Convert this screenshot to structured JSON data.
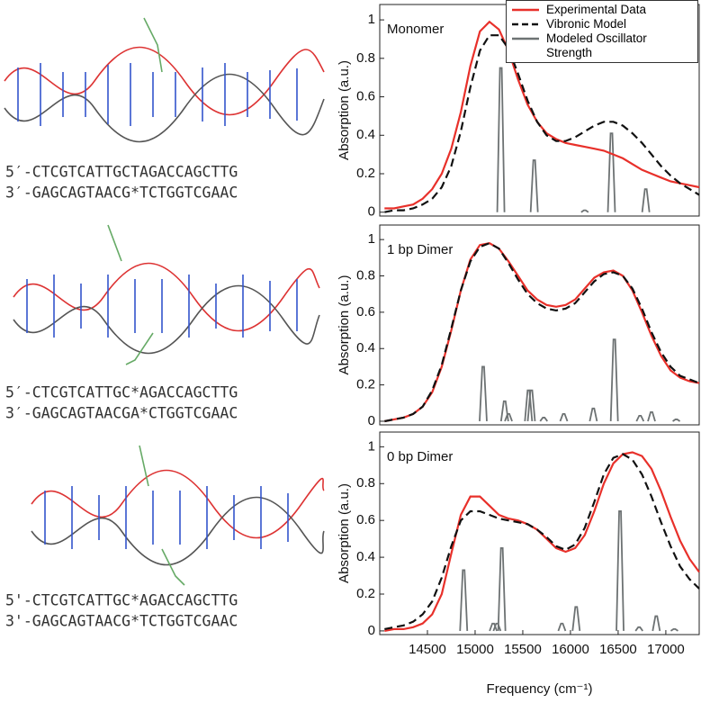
{
  "structures": [
    {
      "strand_5": "5′-CTCGTCATTGCTAGACCAGCTTG",
      "strand_3": "3′-GAGCAGTAACG*TCTGGTCGAAC"
    },
    {
      "strand_5": "5′-CTCGTCATTGC*AGACCAGCTTG",
      "strand_3": "3′-GAGCAGTAACGA*CTGGTCGAAC"
    },
    {
      "strand_5": "5'-CTCGTCATTGC*AGACCAGCTTG",
      "strand_3": "3'-GAGCAGTAACG*TCTGGTCGAAC"
    }
  ],
  "chart_data": [
    {
      "type": "line",
      "title": "Monomer",
      "ylabel": "Absorption (a.u.)",
      "legend": "upper right",
      "xlim": [
        14000,
        17350
      ],
      "ylim": [
        -0.02,
        1.08
      ],
      "yticks": [
        0,
        0.2,
        0.4,
        0.6,
        0.8,
        1
      ],
      "x": [
        14050,
        14150,
        14250,
        14350,
        14450,
        14550,
        14650,
        14750,
        14850,
        14950,
        15050,
        15150,
        15250,
        15350,
        15450,
        15550,
        15650,
        15750,
        15850,
        15950,
        16050,
        16150,
        16250,
        16350,
        16450,
        16550,
        16650,
        16750,
        16850,
        16950,
        17050,
        17150,
        17250,
        17350
      ],
      "series": [
        {
          "name": "Experimental Data",
          "color": "#e8302a",
          "values": [
            0.02,
            0.02,
            0.03,
            0.04,
            0.07,
            0.12,
            0.2,
            0.33,
            0.52,
            0.76,
            0.94,
            0.99,
            0.95,
            0.84,
            0.69,
            0.56,
            0.47,
            0.41,
            0.38,
            0.36,
            0.35,
            0.34,
            0.33,
            0.32,
            0.3,
            0.28,
            0.25,
            0.22,
            0.2,
            0.18,
            0.16,
            0.15,
            0.14,
            0.13
          ]
        },
        {
          "name": "Vibronic Model",
          "color": "#111111",
          "dash": true,
          "values": [
            0,
            0.01,
            0.01,
            0.02,
            0.04,
            0.07,
            0.13,
            0.24,
            0.42,
            0.65,
            0.84,
            0.92,
            0.92,
            0.85,
            0.72,
            0.58,
            0.47,
            0.4,
            0.37,
            0.37,
            0.39,
            0.42,
            0.45,
            0.47,
            0.47,
            0.45,
            0.41,
            0.36,
            0.3,
            0.24,
            0.19,
            0.15,
            0.12,
            0.09
          ]
        },
        {
          "name": "Modeled Oscillator Strength",
          "color": "#6d7273",
          "stick": true,
          "x": [
            15270,
            15620,
            16150,
            16430,
            16790
          ],
          "values": [
            0.75,
            0.27,
            0.01,
            0.41,
            0.12
          ]
        }
      ]
    },
    {
      "type": "line",
      "title": "1 bp Dimer",
      "ylabel": "Absorption (a.u.)",
      "xlim": [
        14000,
        17350
      ],
      "ylim": [
        -0.02,
        1.08
      ],
      "yticks": [
        0,
        0.2,
        0.4,
        0.6,
        0.8,
        1
      ],
      "x": [
        14050,
        14150,
        14250,
        14350,
        14450,
        14550,
        14650,
        14750,
        14850,
        14950,
        15050,
        15150,
        15250,
        15350,
        15450,
        15550,
        15650,
        15750,
        15850,
        15950,
        16050,
        16150,
        16250,
        16350,
        16450,
        16550,
        16650,
        16750,
        16850,
        16950,
        17050,
        17150,
        17250,
        17350
      ],
      "series": [
        {
          "color": "#e8302a",
          "values": [
            0,
            0.01,
            0.02,
            0.04,
            0.08,
            0.16,
            0.3,
            0.5,
            0.72,
            0.89,
            0.97,
            0.98,
            0.95,
            0.88,
            0.8,
            0.72,
            0.67,
            0.64,
            0.63,
            0.64,
            0.67,
            0.73,
            0.79,
            0.82,
            0.83,
            0.8,
            0.72,
            0.6,
            0.47,
            0.36,
            0.28,
            0.24,
            0.22,
            0.21
          ]
        },
        {
          "color": "#111111",
          "dash": true,
          "values": [
            0,
            0.01,
            0.02,
            0.04,
            0.08,
            0.17,
            0.31,
            0.51,
            0.72,
            0.88,
            0.96,
            0.98,
            0.95,
            0.87,
            0.78,
            0.7,
            0.65,
            0.62,
            0.61,
            0.62,
            0.65,
            0.71,
            0.77,
            0.81,
            0.82,
            0.8,
            0.73,
            0.62,
            0.49,
            0.38,
            0.3,
            0.25,
            0.23,
            0.21
          ]
        },
        {
          "color": "#6d7273",
          "stick": true,
          "x": [
            15085,
            15310,
            15350,
            15560,
            15590,
            15720,
            15930,
            16240,
            16460,
            16730,
            16850,
            17110
          ],
          "values": [
            0.3,
            0.11,
            0.04,
            0.17,
            0.17,
            0.02,
            0.04,
            0.07,
            0.45,
            0.03,
            0.05,
            0.01
          ]
        }
      ]
    },
    {
      "type": "line",
      "title": "0 bp Dimer",
      "ylabel": "Absorption (a.u.)",
      "xlabel": "Frequency (cm⁻¹)",
      "xlim": [
        14000,
        17350
      ],
      "ylim": [
        -0.02,
        1.08
      ],
      "yticks": [
        0,
        0.2,
        0.4,
        0.6,
        0.8,
        1
      ],
      "xticks": [
        14500,
        15000,
        15500,
        16000,
        16500,
        17000
      ],
      "x": [
        14050,
        14150,
        14250,
        14350,
        14450,
        14550,
        14650,
        14750,
        14850,
        14950,
        15050,
        15150,
        15250,
        15350,
        15450,
        15550,
        15650,
        15750,
        15850,
        15950,
        16050,
        16150,
        16250,
        16350,
        16450,
        16550,
        16650,
        16750,
        16850,
        16950,
        17050,
        17150,
        17250,
        17350
      ],
      "series": [
        {
          "color": "#e8302a",
          "values": [
            0,
            0.01,
            0.01,
            0.02,
            0.04,
            0.09,
            0.2,
            0.42,
            0.63,
            0.73,
            0.73,
            0.68,
            0.63,
            0.61,
            0.6,
            0.58,
            0.55,
            0.5,
            0.45,
            0.43,
            0.45,
            0.52,
            0.65,
            0.8,
            0.91,
            0.96,
            0.97,
            0.95,
            0.88,
            0.76,
            0.62,
            0.49,
            0.39,
            0.32
          ]
        },
        {
          "color": "#111111",
          "dash": true,
          "values": [
            0.01,
            0.02,
            0.03,
            0.05,
            0.09,
            0.16,
            0.29,
            0.46,
            0.6,
            0.65,
            0.65,
            0.63,
            0.61,
            0.6,
            0.59,
            0.58,
            0.55,
            0.51,
            0.46,
            0.44,
            0.47,
            0.56,
            0.7,
            0.85,
            0.94,
            0.96,
            0.93,
            0.85,
            0.73,
            0.59,
            0.46,
            0.35,
            0.28,
            0.23
          ]
        },
        {
          "color": "#6d7273",
          "stick": true,
          "x": [
            14880,
            15190,
            15230,
            15280,
            15910,
            16060,
            16520,
            16720,
            16900,
            17090
          ],
          "values": [
            0.33,
            0.04,
            0.04,
            0.45,
            0.04,
            0.13,
            0.65,
            0.02,
            0.08,
            0.01
          ]
        }
      ]
    }
  ]
}
